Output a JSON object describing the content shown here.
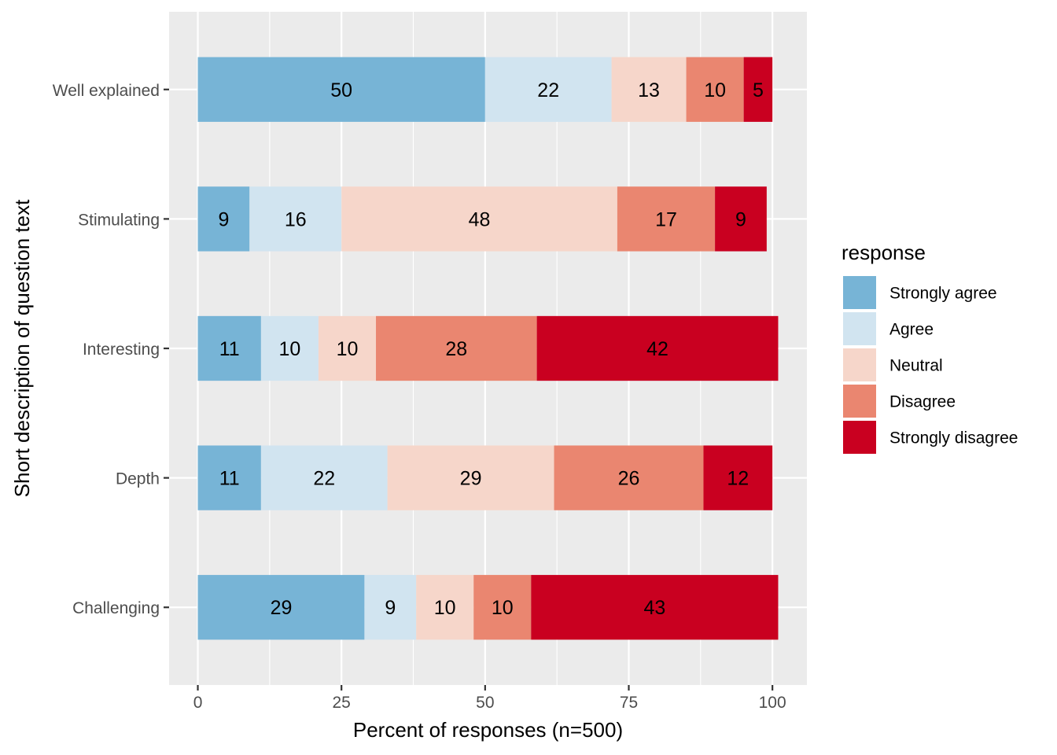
{
  "chart_data": {
    "type": "bar",
    "orientation": "horizontal",
    "stacked": true,
    "xlabel": "Percent of responses (n=500)",
    "ylabel": "Short description of question text",
    "xlim": [
      -5,
      106
    ],
    "x_ticks": [
      0,
      25,
      50,
      75,
      100
    ],
    "grid": true,
    "legend_placement": "right",
    "categories": [
      "Challenging",
      "Depth",
      "Interesting",
      "Stimulating",
      "Well explained"
    ],
    "legend": {
      "title": "response"
    },
    "series": [
      {
        "name": "Strongly agree",
        "color": "#77b4d6",
        "values": [
          29,
          11,
          11,
          9,
          50
        ]
      },
      {
        "name": "Agree",
        "color": "#d1e4f0",
        "values": [
          9,
          22,
          10,
          16,
          22
        ]
      },
      {
        "name": "Neutral",
        "color": "#f6d6ca",
        "values": [
          10,
          29,
          10,
          48,
          13
        ]
      },
      {
        "name": "Disagree",
        "color": "#ea8670",
        "values": [
          10,
          26,
          28,
          17,
          10
        ]
      },
      {
        "name": "Strongly disagree",
        "color": "#c90020",
        "values": [
          43,
          12,
          42,
          9,
          5
        ]
      }
    ]
  }
}
